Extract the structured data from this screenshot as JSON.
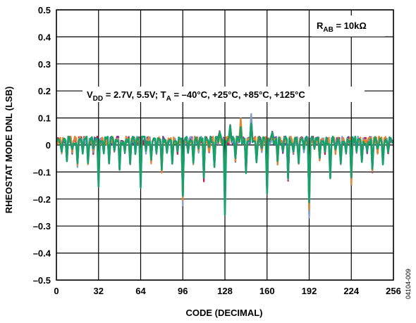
{
  "chart_data": {
    "type": "line",
    "xlabel": "CODE (DECIMAL)",
    "ylabel": "RHEOSTAT MODE DNL (LSB)",
    "xlim": [
      0,
      256
    ],
    "ylim": [
      -0.5,
      0.5
    ],
    "xticks": [
      0,
      32,
      64,
      96,
      128,
      160,
      192,
      224,
      256
    ],
    "xtick_labels": [
      "0",
      "32",
      "64",
      "96",
      "128",
      "160",
      "192",
      "224",
      "256"
    ],
    "yticks": [
      -0.5,
      -0.4,
      -0.3,
      -0.2,
      -0.1,
      0,
      0.1,
      0.2,
      0.3,
      0.4,
      0.5
    ],
    "ytick_labels": [
      "–0.5",
      "–0.4",
      "–0.3",
      "–0.2",
      "–0.1",
      "0",
      "0.1",
      "0.2",
      "0.3",
      "0.4",
      "0.5"
    ],
    "grid": true,
    "annotations": {
      "rab": {
        "main": "R",
        "sub": "AB",
        "rest": " = 10kΩ"
      },
      "conditions": {
        "v": "V",
        "v_sub": "DD",
        "mid": " = 2.7V, 5.5V; T",
        "t_sub": "A",
        "rest": " = –40°C, +25°C, +85°C, +125°C"
      }
    },
    "figure_id": "04104-009",
    "major_dips": [
      {
        "code": 8,
        "dnl": -0.07
      },
      {
        "code": 16,
        "dnl": -0.08
      },
      {
        "code": 24,
        "dnl": -0.07
      },
      {
        "code": 32,
        "dnl": -0.16
      },
      {
        "code": 40,
        "dnl": -0.07
      },
      {
        "code": 48,
        "dnl": -0.09
      },
      {
        "code": 56,
        "dnl": -0.08
      },
      {
        "code": 64,
        "dnl": -0.17
      },
      {
        "code": 72,
        "dnl": -0.07
      },
      {
        "code": 80,
        "dnl": -0.1
      },
      {
        "code": 88,
        "dnl": -0.07
      },
      {
        "code": 96,
        "dnl": -0.22
      },
      {
        "code": 104,
        "dnl": -0.07
      },
      {
        "code": 112,
        "dnl": -0.13
      },
      {
        "code": 120,
        "dnl": -0.08
      },
      {
        "code": 128,
        "dnl": -0.25
      },
      {
        "code": 136,
        "dnl": -0.06
      },
      {
        "code": 144,
        "dnl": -0.12
      },
      {
        "code": 152,
        "dnl": -0.07
      },
      {
        "code": 160,
        "dnl": -0.2
      },
      {
        "code": 168,
        "dnl": -0.07
      },
      {
        "code": 176,
        "dnl": -0.13
      },
      {
        "code": 184,
        "dnl": -0.07
      },
      {
        "code": 192,
        "dnl": -0.26
      },
      {
        "code": 200,
        "dnl": -0.06
      },
      {
        "code": 208,
        "dnl": -0.12
      },
      {
        "code": 216,
        "dnl": -0.07
      },
      {
        "code": 224,
        "dnl": -0.15
      },
      {
        "code": 232,
        "dnl": -0.07
      },
      {
        "code": 240,
        "dnl": -0.1
      },
      {
        "code": 248,
        "dnl": -0.07
      }
    ],
    "peaks": [
      {
        "code": 124,
        "dnl": 0.08
      },
      {
        "code": 132,
        "dnl": 0.12
      },
      {
        "code": 140,
        "dnl": 0.1
      },
      {
        "code": 148,
        "dnl": 0.11
      },
      {
        "code": 164,
        "dnl": 0.05
      }
    ],
    "series": [
      {
        "color": "#6b3fa0"
      },
      {
        "color": "#c2185b"
      },
      {
        "color": "#7a9ccf"
      },
      {
        "color": "#e8862a"
      },
      {
        "color": "#16a06a"
      }
    ]
  }
}
